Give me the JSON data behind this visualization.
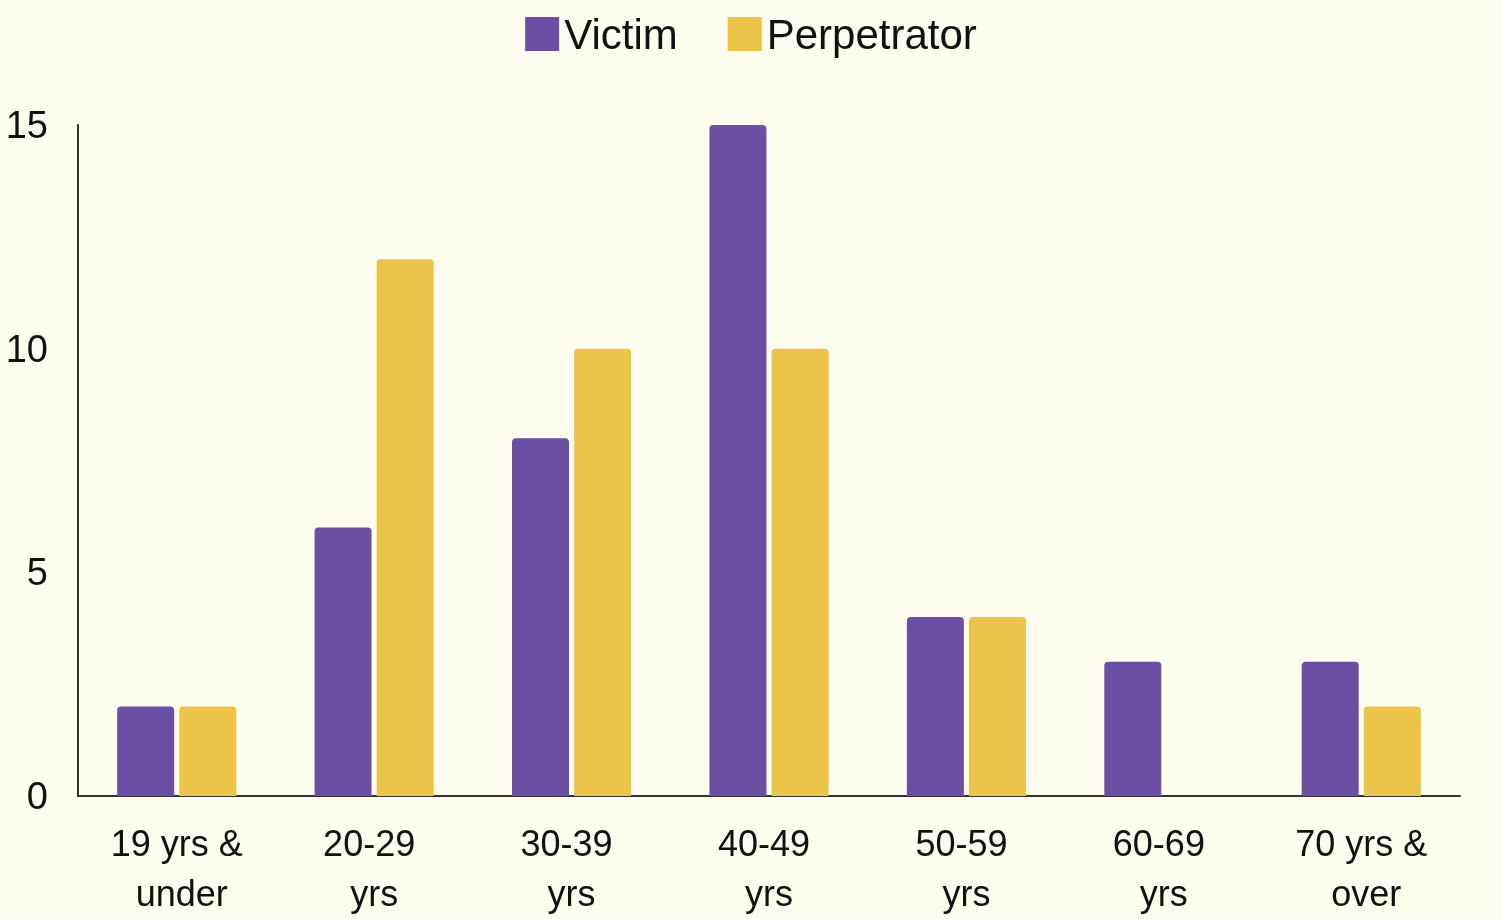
{
  "chart_data": {
    "type": "bar",
    "categories": [
      "19 yrs & under",
      "20-29 yrs",
      "30-39 yrs",
      "40-49 yrs",
      "50-59 yrs",
      "60-69 yrs",
      "70 yrs & over"
    ],
    "series": [
      {
        "name": "Victim",
        "color": "#6b4fa3",
        "values": [
          2,
          6,
          8,
          15,
          4,
          3,
          3
        ]
      },
      {
        "name": "Perpetrator",
        "color": "#ecc44a",
        "values": [
          2,
          12,
          10,
          10,
          4,
          0,
          2
        ]
      }
    ],
    "ylim": [
      0,
      15
    ],
    "yticks": [
      0,
      5,
      10,
      15
    ],
    "grid": false,
    "legend": "top"
  }
}
